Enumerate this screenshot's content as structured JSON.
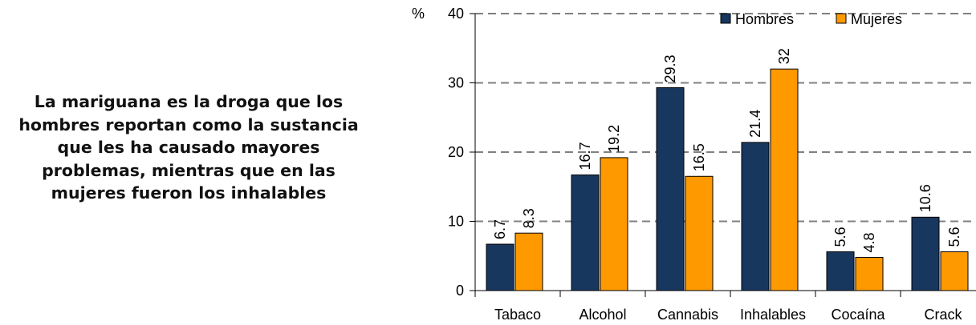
{
  "caption": {
    "lines": [
      "La mariguana es la droga que los",
      "hombres reportan como la sustancia",
      "que les ha causado mayores",
      "problemas, mientras que en las",
      "mujeres fueron los inhalables"
    ]
  },
  "chart_data": {
    "type": "bar",
    "title": "",
    "xlabel": "",
    "ylabel": "%",
    "ylim": [
      0,
      40
    ],
    "yticks": [
      0,
      10,
      20,
      30,
      40
    ],
    "grid": true,
    "legend_position": "top-right",
    "categories": [
      "Tabaco",
      "Alcohol",
      "Cannabis",
      "Inhalables",
      "Cocaína",
      "Crack"
    ],
    "series": [
      {
        "name": "Hombres",
        "color": "#17375e",
        "values": [
          6.7,
          16.7,
          29.3,
          21.4,
          5.6,
          10.6
        ],
        "labels": [
          "6.7",
          "16.7",
          "29.3",
          "21.4",
          "5.6",
          "10.6"
        ]
      },
      {
        "name": "Mujeres",
        "color": "#ff9900",
        "values": [
          8.3,
          19.2,
          16.5,
          32,
          4.8,
          5.6
        ],
        "labels": [
          "8.3",
          "19.2",
          "16.5",
          "32",
          "4.8",
          "5.6"
        ]
      }
    ]
  }
}
